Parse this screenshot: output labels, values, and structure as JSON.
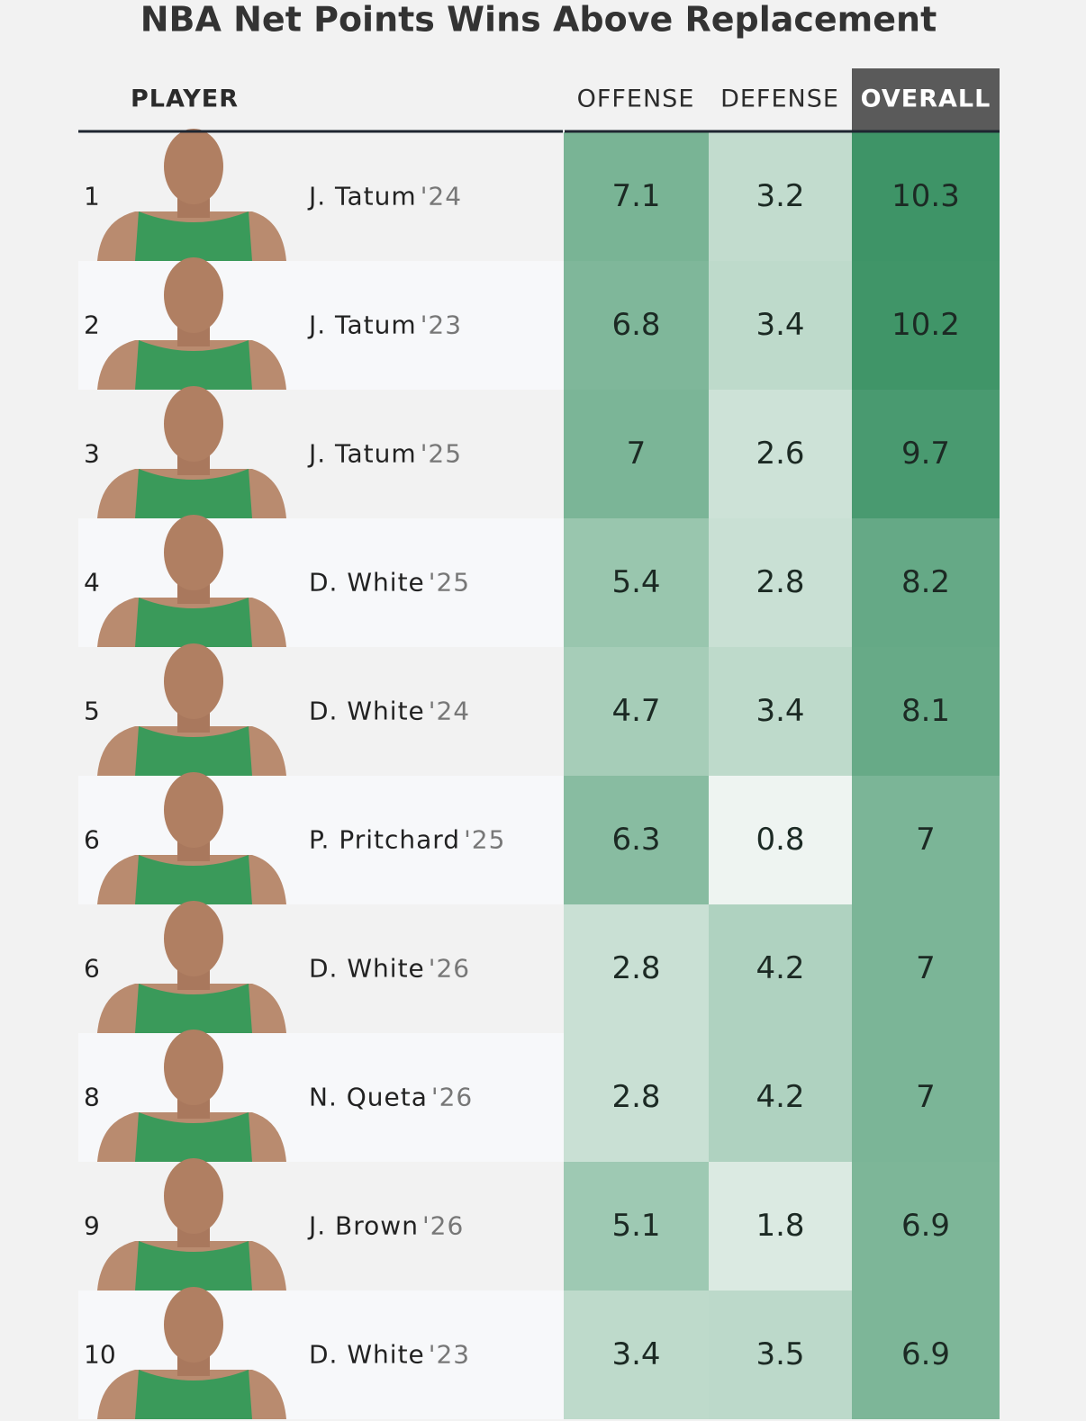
{
  "header": {
    "title": "NBA Net Points Wins Above Replacement"
  },
  "table": {
    "columns": [
      "PLAYER",
      "OFFENSE",
      "DEFENSE",
      "OVERALL"
    ],
    "rows": [
      {
        "rank": "1",
        "name": "J. Tatum",
        "season": "'24",
        "offense": 7.1,
        "defense": 3.2,
        "overall": 10.3
      },
      {
        "rank": "2",
        "name": "J. Tatum",
        "season": "'23",
        "offense": 6.8,
        "defense": 3.4,
        "overall": 10.2
      },
      {
        "rank": "3",
        "name": "J. Tatum",
        "season": "'25",
        "offense": 7.0,
        "defense": 2.6,
        "overall": 9.7
      },
      {
        "rank": "4",
        "name": "D. White",
        "season": "'25",
        "offense": 5.4,
        "defense": 2.8,
        "overall": 8.2
      },
      {
        "rank": "5",
        "name": "D. White",
        "season": "'24",
        "offense": 4.7,
        "defense": 3.4,
        "overall": 8.1
      },
      {
        "rank": "6",
        "name": "P. Pritchard",
        "season": "'25",
        "offense": 6.3,
        "defense": 0.8,
        "overall": 7.0
      },
      {
        "rank": "6",
        "name": "D. White",
        "season": "'26",
        "offense": 2.8,
        "defense": 4.2,
        "overall": 7.0
      },
      {
        "rank": "8",
        "name": "N. Queta",
        "season": "'26",
        "offense": 2.8,
        "defense": 4.2,
        "overall": 7.0
      },
      {
        "rank": "9",
        "name": "J. Brown",
        "season": "'26",
        "offense": 5.1,
        "defense": 1.8,
        "overall": 6.9
      },
      {
        "rank": "10",
        "name": "D. White",
        "season": "'23",
        "offense": 3.4,
        "defense": 3.5,
        "overall": 6.9
      }
    ]
  }
}
